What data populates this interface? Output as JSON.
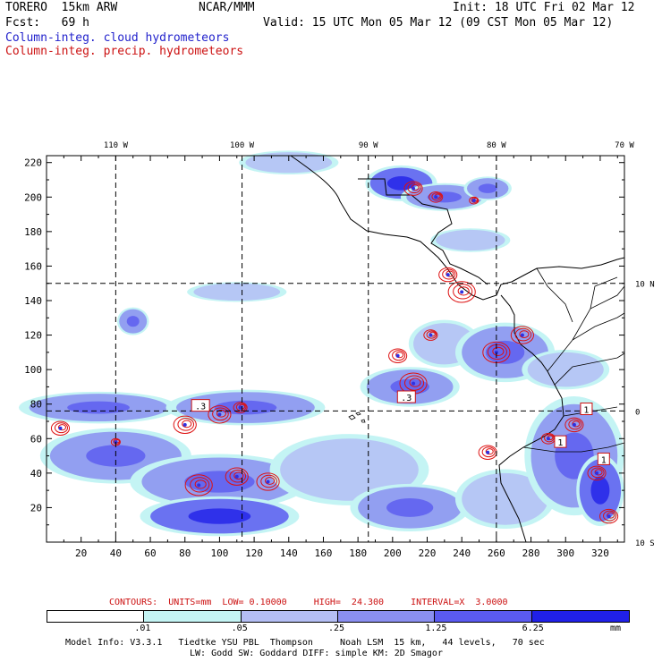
{
  "header": {
    "model": "TORERO  15km ARW",
    "org": "NCAR/MMM",
    "init": "Init: 18 UTC Fri 02 Mar 12",
    "fcst": "Fcst:   69 h",
    "valid": "Valid: 15 UTC Mon 05 Mar 12 (09 CST Mon 05 Mar 12)",
    "legend_blue": "Column-integ. cloud hydrometeors",
    "legend_red": "Column-integ. precip. hydrometeors"
  },
  "contour_info": {
    "text": "CONTOURS:  UNITS=mm  LOW= 0.10000     HIGH=  24.300     INTERVAL=X  3.0000"
  },
  "colorbar": {
    "labels": [
      ".01",
      ".05",
      ".25",
      "1.25",
      "6.25"
    ],
    "units": "mm",
    "colors": [
      "#ffffff",
      "#c4f4f4",
      "#b4bef4",
      "#8a8ff0",
      "#5a5af0",
      "#2020e8"
    ]
  },
  "footer": {
    "line1": "Model Info: V3.3.1   Tiedtke YSU PBL  Thompson     Noah LSM  15 km,   44 levels,   70 sec",
    "line2": "LW: Godd SW: Goddard DIFF: simple KM: 2D Smagor"
  },
  "chart_data": {
    "type": "heatmap",
    "title": "Column-integ. cloud hydrometeors / Column-integ. precip. hydrometeors",
    "x_grid_ticks": [
      20,
      40,
      60,
      80,
      100,
      120,
      140,
      160,
      180,
      200,
      220,
      240,
      260,
      280,
      300,
      320
    ],
    "y_grid_ticks": [
      20,
      40,
      60,
      80,
      100,
      120,
      140,
      160,
      180,
      200,
      220
    ],
    "xlim": [
      0,
      334
    ],
    "ylim": [
      0,
      224
    ],
    "lon_labels": [
      "110 W",
      "100 W",
      "90 W",
      "80 W",
      "70 W"
    ],
    "lon_positions": [
      40,
      113,
      186,
      260,
      334
    ],
    "lat_labels": [
      "10 N",
      "0",
      "10 S"
    ],
    "lat_positions": [
      150,
      76,
      0
    ],
    "cloud_patches": [
      {
        "x": 205,
        "y": 208,
        "rx": 18,
        "ry": 9,
        "level": 3
      },
      {
        "x": 230,
        "y": 200,
        "rx": 22,
        "ry": 7,
        "level": 2
      },
      {
        "x": 255,
        "y": 205,
        "rx": 12,
        "ry": 6,
        "level": 2
      },
      {
        "x": 245,
        "y": 175,
        "rx": 20,
        "ry": 6,
        "level": 1
      },
      {
        "x": 140,
        "y": 220,
        "rx": 25,
        "ry": 6,
        "level": 1
      },
      {
        "x": 110,
        "y": 145,
        "rx": 25,
        "ry": 5,
        "level": 1
      },
      {
        "x": 50,
        "y": 128,
        "rx": 8,
        "ry": 7,
        "level": 2
      },
      {
        "x": 230,
        "y": 115,
        "rx": 18,
        "ry": 12,
        "level": 1
      },
      {
        "x": 265,
        "y": 110,
        "rx": 25,
        "ry": 15,
        "level": 2
      },
      {
        "x": 300,
        "y": 100,
        "rx": 22,
        "ry": 10,
        "level": 1
      },
      {
        "x": 30,
        "y": 78,
        "rx": 40,
        "ry": 8,
        "level": 2
      },
      {
        "x": 115,
        "y": 78,
        "rx": 40,
        "ry": 9,
        "level": 2
      },
      {
        "x": 210,
        "y": 90,
        "rx": 25,
        "ry": 10,
        "level": 2
      },
      {
        "x": 40,
        "y": 50,
        "rx": 38,
        "ry": 14,
        "level": 2
      },
      {
        "x": 100,
        "y": 35,
        "rx": 45,
        "ry": 14,
        "level": 2
      },
      {
        "x": 100,
        "y": 15,
        "rx": 40,
        "ry": 10,
        "level": 3
      },
      {
        "x": 175,
        "y": 42,
        "rx": 40,
        "ry": 18,
        "level": 1
      },
      {
        "x": 210,
        "y": 20,
        "rx": 30,
        "ry": 12,
        "level": 2
      },
      {
        "x": 265,
        "y": 25,
        "rx": 25,
        "ry": 15,
        "level": 1
      },
      {
        "x": 305,
        "y": 50,
        "rx": 25,
        "ry": 30,
        "level": 2
      },
      {
        "x": 320,
        "y": 30,
        "rx": 12,
        "ry": 18,
        "level": 3
      }
    ],
    "precip_cells": [
      {
        "x": 240,
        "y": 145,
        "r": 6
      },
      {
        "x": 232,
        "y": 155,
        "r": 4
      },
      {
        "x": 212,
        "y": 205,
        "r": 4
      },
      {
        "x": 225,
        "y": 200,
        "r": 3
      },
      {
        "x": 247,
        "y": 198,
        "r": 2
      },
      {
        "x": 212,
        "y": 92,
        "r": 6
      },
      {
        "x": 203,
        "y": 108,
        "r": 4
      },
      {
        "x": 222,
        "y": 120,
        "r": 3
      },
      {
        "x": 260,
        "y": 110,
        "r": 6
      },
      {
        "x": 275,
        "y": 120,
        "r": 5
      },
      {
        "x": 8,
        "y": 66,
        "r": 4
      },
      {
        "x": 40,
        "y": 58,
        "r": 2
      },
      {
        "x": 80,
        "y": 68,
        "r": 5
      },
      {
        "x": 100,
        "y": 74,
        "r": 5
      },
      {
        "x": 112,
        "y": 78,
        "r": 3
      },
      {
        "x": 88,
        "y": 33,
        "r": 6
      },
      {
        "x": 110,
        "y": 38,
        "r": 5
      },
      {
        "x": 128,
        "y": 35,
        "r": 5
      },
      {
        "x": 255,
        "y": 52,
        "r": 4
      },
      {
        "x": 290,
        "y": 60,
        "r": 3
      },
      {
        "x": 305,
        "y": 68,
        "r": 4
      },
      {
        "x": 318,
        "y": 40,
        "r": 4
      },
      {
        "x": 325,
        "y": 15,
        "r": 4
      }
    ],
    "labels": [
      {
        "text": ".3",
        "x": 89,
        "y": 79
      },
      {
        "text": ".3",
        "x": 208,
        "y": 84
      },
      {
        "text": "1",
        "x": 312,
        "y": 77
      },
      {
        "text": "1",
        "x": 297,
        "y": 58
      },
      {
        "text": "1",
        "x": 322,
        "y": 48
      }
    ]
  }
}
